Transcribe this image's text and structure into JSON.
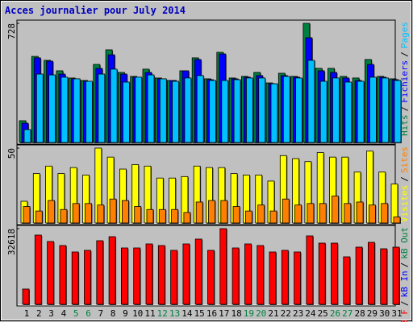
{
  "chart_data": [
    {
      "type": "bar",
      "title": "Acces journalier pour July 2014",
      "ylim": [
        0,
        728
      ],
      "yticks": [
        728
      ],
      "legend_separator": "/",
      "series": [
        {
          "name": "Hits",
          "color": "#008040",
          "values": [
            133,
            526,
            502,
            438,
            394,
            379,
            477,
            566,
            428,
            404,
            448,
            394,
            379,
            438,
            517,
            389,
            551,
            394,
            404,
            428,
            364,
            423,
            404,
            728,
            453,
            453,
            404,
            394,
            507,
            404,
            389
          ]
        },
        {
          "name": "Fichiers",
          "color": "#0000ff",
          "values": [
            118,
            517,
            497,
            418,
            389,
            374,
            453,
            536,
            418,
            399,
            428,
            389,
            379,
            438,
            507,
            384,
            541,
            389,
            399,
            409,
            359,
            409,
            399,
            640,
            438,
            428,
            394,
            379,
            477,
            399,
            384
          ]
        },
        {
          "name": "Pages",
          "color": "#00c0ff",
          "values": [
            79,
            418,
            413,
            399,
            389,
            374,
            418,
            448,
            369,
            399,
            413,
            389,
            374,
            394,
            409,
            379,
            379,
            384,
            394,
            394,
            359,
            404,
            394,
            502,
            374,
            394,
            369,
            374,
            399,
            394,
            379
          ]
        }
      ]
    },
    {
      "type": "bar",
      "ylim": [
        0,
        50
      ],
      "yticks": [
        50
      ],
      "legend_separator": "/",
      "series": [
        {
          "name": "Visites",
          "color": "#ffff00",
          "values": [
            14.5,
            33,
            38,
            33,
            37,
            32,
            50,
            44,
            36,
            39,
            38,
            30,
            30,
            31,
            38,
            37,
            37,
            33,
            32,
            32,
            28,
            45,
            43,
            41,
            47,
            44,
            44,
            34,
            48,
            34,
            26
          ]
        },
        {
          "name": "Sites",
          "color": "#ff8000",
          "values": [
            11,
            8,
            15,
            9,
            13,
            13,
            12,
            16,
            15,
            11,
            9,
            9,
            9,
            7,
            14,
            15,
            15,
            11,
            8,
            12,
            8,
            16,
            12,
            13,
            13,
            18,
            13,
            14,
            12,
            13,
            4
          ]
        }
      ]
    },
    {
      "type": "bar",
      "ylim": [
        0,
        32618
      ],
      "yticks": [
        32618
      ],
      "legend_separator": "/",
      "categories": [
        "1",
        "2",
        "3",
        "4",
        "5",
        "6",
        "7",
        "8",
        "9",
        "10",
        "11",
        "12",
        "13",
        "14",
        "15",
        "16",
        "17",
        "18",
        "19",
        "20",
        "21",
        "22",
        "23",
        "24",
        "25",
        "26",
        "27",
        "28",
        "29",
        "30",
        "31"
      ],
      "category_colors": [
        "#000000",
        "#000000",
        "#000000",
        "#000000",
        "#008040",
        "#008040",
        "#000000",
        "#000000",
        "#000000",
        "#000000",
        "#000000",
        "#008040",
        "#008040",
        "#000000",
        "#000000",
        "#000000",
        "#000000",
        "#000000",
        "#008040",
        "#008040",
        "#000000",
        "#000000",
        "#000000",
        "#000000",
        "#000000",
        "#008040",
        "#008040",
        "#000000",
        "#000000",
        "#000000",
        "#000000"
      ],
      "series": [
        {
          "name": "kB F",
          "color": "#ff0000",
          "values": [
            6593,
            29842,
            27066,
            25331,
            22555,
            23249,
            27413,
            29148,
            24290,
            24290,
            26025,
            25331,
            23249,
            26025,
            28107,
            23249,
            32618,
            24290,
            26025,
            25331,
            22555,
            23249,
            22555,
            29495,
            26372,
            26372,
            20473,
            24637,
            26719,
            23943,
            24637
          ]
        },
        {
          "name": "kB In",
          "color": "#0000ff",
          "values": [
            null,
            null,
            null,
            null,
            null,
            null,
            null,
            null,
            null,
            null,
            null,
            null,
            null,
            null,
            null,
            null,
            null,
            null,
            null,
            null,
            null,
            null,
            null,
            null,
            null,
            null,
            null,
            null,
            null,
            null,
            null
          ]
        },
        {
          "name": "kB Out",
          "color": "#008040",
          "values": [
            null,
            null,
            null,
            null,
            null,
            null,
            null,
            null,
            null,
            null,
            null,
            null,
            null,
            null,
            null,
            null,
            null,
            null,
            null,
            null,
            null,
            null,
            null,
            null,
            null,
            null,
            null,
            null,
            null,
            null,
            null
          ]
        }
      ]
    }
  ]
}
